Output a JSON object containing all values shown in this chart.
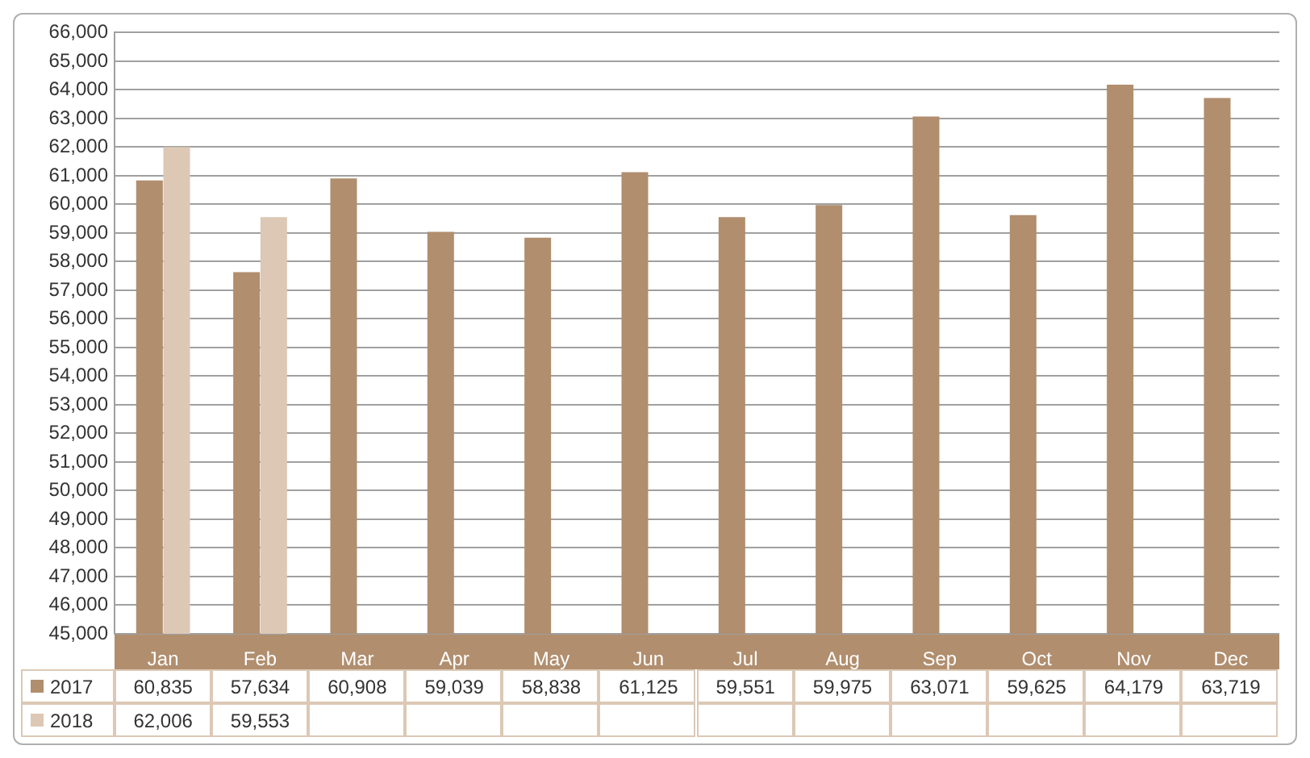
{
  "chart_data": {
    "type": "bar",
    "categories": [
      "Jan",
      "Feb",
      "Mar",
      "Apr",
      "May",
      "Jun",
      "Jul",
      "Aug",
      "Sep",
      "Oct",
      "Nov",
      "Dec"
    ],
    "series": [
      {
        "name": "2017",
        "color": "#b08e6e",
        "values": [
          60835,
          57634,
          60908,
          59039,
          58838,
          61125,
          59551,
          59975,
          63071,
          59625,
          64179,
          63719
        ],
        "value_labels": [
          "60,835",
          "57,634",
          "60,908",
          "59,039",
          "58,838",
          "61,125",
          "59,551",
          "59,975",
          "63,071",
          "59,625",
          "64,179",
          "63,719"
        ]
      },
      {
        "name": "2018",
        "color": "#dcc8b5",
        "values": [
          62006,
          59553,
          null,
          null,
          null,
          null,
          null,
          null,
          null,
          null,
          null,
          null
        ],
        "value_labels": [
          "62,006",
          "59,553",
          null,
          null,
          null,
          null,
          null,
          null,
          null,
          null,
          null,
          null
        ]
      }
    ],
    "ylim": [
      45000,
      66000
    ],
    "yticks": [
      {
        "value": 45000,
        "label": "45,000"
      },
      {
        "value": 46000,
        "label": "46,000"
      },
      {
        "value": 47000,
        "label": "47,000"
      },
      {
        "value": 48000,
        "label": "48,000"
      },
      {
        "value": 49000,
        "label": "49,000"
      },
      {
        "value": 50000,
        "label": "50,000"
      },
      {
        "value": 51000,
        "label": "51,000"
      },
      {
        "value": 52000,
        "label": "52,000"
      },
      {
        "value": 53000,
        "label": "53,000"
      },
      {
        "value": 54000,
        "label": "54,000"
      },
      {
        "value": 55000,
        "label": "55,000"
      },
      {
        "value": 56000,
        "label": "56,000"
      },
      {
        "value": 57000,
        "label": "57,000"
      },
      {
        "value": 58000,
        "label": "58,000"
      },
      {
        "value": 59000,
        "label": "59,000"
      },
      {
        "value": 60000,
        "label": "60,000"
      },
      {
        "value": 61000,
        "label": "61,000"
      },
      {
        "value": 62000,
        "label": "62,000"
      },
      {
        "value": 63000,
        "label": "63,000"
      },
      {
        "value": 64000,
        "label": "64,000"
      },
      {
        "value": 65000,
        "label": "65,000"
      },
      {
        "value": 66000,
        "label": "66,000"
      }
    ],
    "grid": "y",
    "legend": "bottom"
  }
}
